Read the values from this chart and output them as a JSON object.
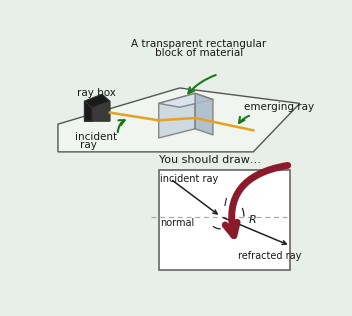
{
  "bg_color": "#e8efe8",
  "title_text1": "A transparent rectangular",
  "title_text2": "block of material",
  "label_ray_box": "ray box",
  "label_incident_ray": "incident",
  "label_incident_ray2": "ray",
  "label_emerging_ray": "emerging ray",
  "label_you_should_draw": "You should draw…",
  "label_incident_ray_diag": "incident ray",
  "label_normal": "normal",
  "label_refracted_ray": "refracted ray",
  "label_I": "I",
  "label_R": "R",
  "green": "#1a7a1a",
  "dark_red": "#8b1a2a",
  "orange": "#e8a020",
  "text_color": "#1a1a1a",
  "box_bg": "#ffffff",
  "line_color": "#222222",
  "normal_dash_color": "#aaaaaa",
  "surface_fill": "#f0f5f0",
  "surface_edge": "#555555",
  "block_front": "#c8d4e0",
  "block_top": "#dde6f0",
  "block_right": "#a8b8c8",
  "block_edge": "#777777",
  "raybox_dark": "#1a1a1a",
  "raybox_grey": "#606060"
}
